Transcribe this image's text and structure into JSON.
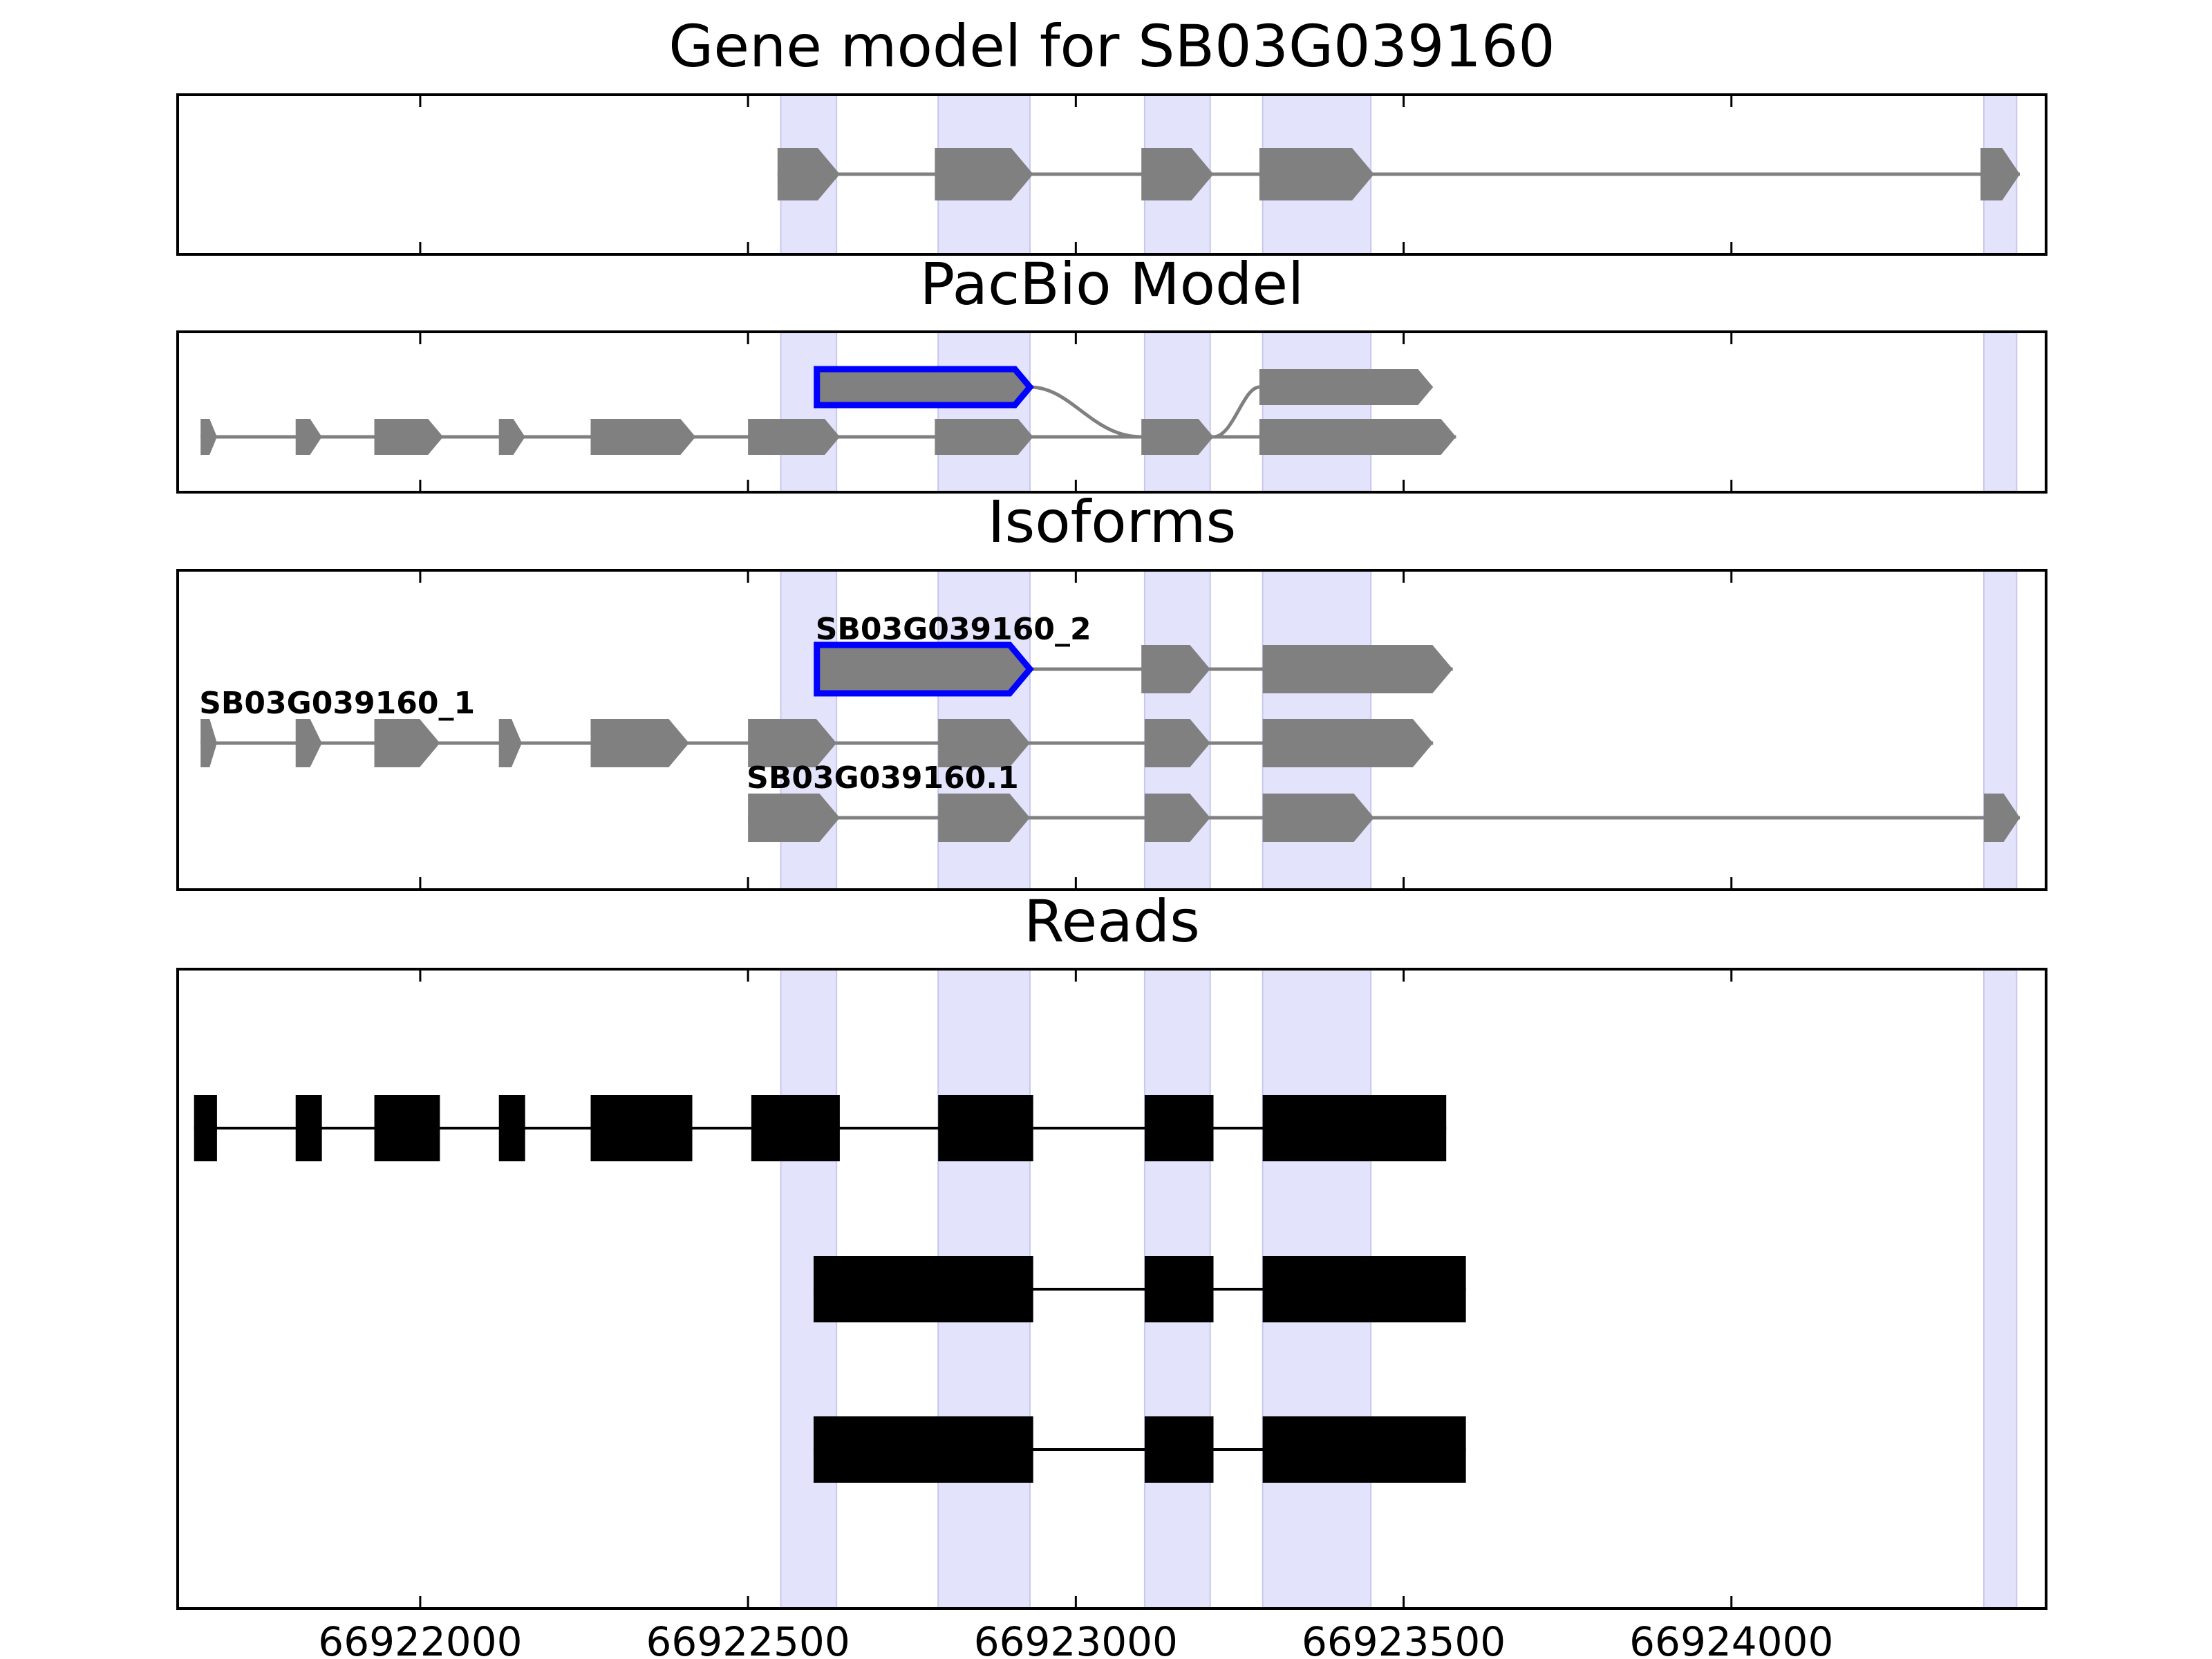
{
  "colors": {
    "highlight": "#e2e2fb",
    "exon": "#808080",
    "selected_outline": "#0000ff",
    "read": "#000000",
    "frame": "#000000"
  },
  "chart_data": {
    "type": "gene-track",
    "x_range": [
      66921630,
      66924480
    ],
    "x_ticks": [
      66922000,
      66922500,
      66923000,
      66923500,
      66924000
    ],
    "x_tick_labels": [
      "66922000",
      "66922500",
      "66923000",
      "66923500",
      "66924000"
    ],
    "highlight_regions": [
      [
        66922550,
        66922635
      ],
      [
        66922790,
        66922930
      ],
      [
        66923105,
        66923205
      ],
      [
        66923285,
        66923450
      ],
      [
        66924385,
        66924435
      ]
    ],
    "panels": [
      {
        "title": "Gene model for SB03G039160",
        "tracks": [
          {
            "label": "",
            "selected": false,
            "exons": [
              [
                66922545,
                66922640
              ],
              [
                66922785,
                66922935
              ],
              [
                66923100,
                66923210
              ],
              [
                66923280,
                66923455
              ],
              [
                66924380,
                66924440
              ]
            ]
          }
        ]
      },
      {
        "title": "PacBio Model",
        "tracks": [
          {
            "label": "",
            "selected": true,
            "exons": [
              [
                66922605,
                66922930
              ]
            ],
            "connect_to": [
              [
                66923280,
                66923545
              ]
            ]
          },
          {
            "label": "",
            "selected": false,
            "exons": [
              [
                66921665,
                66921690
              ],
              [
                66921810,
                66921850
              ],
              [
                66921930,
                66922035
              ],
              [
                66922120,
                66922160
              ],
              [
                66922260,
                66922420
              ],
              [
                66922500,
                66922640
              ],
              [
                66922785,
                66922935
              ],
              [
                66923100,
                66923210
              ],
              [
                66923280,
                66923580
              ]
            ]
          }
        ]
      },
      {
        "title": "Isoforms",
        "tracks": [
          {
            "label": "SB03G039160_2",
            "selected": true,
            "exons": [
              [
                66922605,
                66922930
              ],
              [
                66923100,
                66923205
              ],
              [
                66923285,
                66923575
              ]
            ]
          },
          {
            "label": "SB03G039160_1",
            "selected": false,
            "exons": [
              [
                66921665,
                66921690
              ],
              [
                66921810,
                66921850
              ],
              [
                66921930,
                66922030
              ],
              [
                66922120,
                66922155
              ],
              [
                66922260,
                66922410
              ],
              [
                66922500,
                66922635
              ],
              [
                66922790,
                66922930
              ],
              [
                66923105,
                66923205
              ],
              [
                66923285,
                66923545
              ]
            ]
          },
          {
            "label": "SB03G039160.1",
            "selected": false,
            "exons": [
              [
                66922500,
                66922640
              ],
              [
                66922790,
                66922930
              ],
              [
                66923105,
                66923205
              ],
              [
                66923285,
                66923455
              ],
              [
                66924385,
                66924440
              ]
            ]
          }
        ]
      },
      {
        "title": "Reads",
        "tracks": [
          {
            "label": "",
            "exons": [
              [
                66921655,
                66921690
              ],
              [
                66921810,
                66921850
              ],
              [
                66921930,
                66922030
              ],
              [
                66922120,
                66922160
              ],
              [
                66922260,
                66922415
              ],
              [
                66922505,
                66922640
              ],
              [
                66922790,
                66922935
              ],
              [
                66923105,
                66923210
              ],
              [
                66923285,
                66923565
              ]
            ]
          },
          {
            "label": "",
            "exons": [
              [
                66922600,
                66922935
              ],
              [
                66923105,
                66923210
              ],
              [
                66923285,
                66923595
              ]
            ]
          },
          {
            "label": "",
            "exons": [
              [
                66922600,
                66922935
              ],
              [
                66923105,
                66923210
              ],
              [
                66923285,
                66923595
              ]
            ]
          }
        ]
      }
    ]
  }
}
